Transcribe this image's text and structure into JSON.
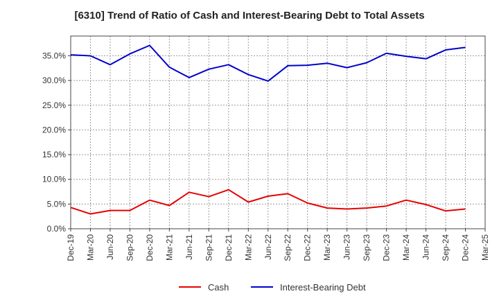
{
  "chart_data": {
    "type": "line",
    "title": "[6310]  Trend of Ratio of Cash and Interest-Bearing Debt to Total Assets",
    "xlabel": "",
    "ylabel": "",
    "categories": [
      "Dec-19",
      "Mar-20",
      "Jun-20",
      "Sep-20",
      "Dec-20",
      "Mar-21",
      "Jun-21",
      "Sep-21",
      "Dec-21",
      "Mar-22",
      "Jun-22",
      "Sep-22",
      "Dec-22",
      "Mar-23",
      "Jun-23",
      "Sep-23",
      "Dec-23",
      "Mar-24",
      "Jun-24",
      "Sep-24",
      "Dec-24",
      "Mar-25"
    ],
    "ylim": [
      0,
      39
    ],
    "yticks": [
      0,
      5,
      10,
      15,
      20,
      25,
      30,
      35
    ],
    "ytick_labels": [
      "0.0%",
      "5.0%",
      "10.0%",
      "15.0%",
      "20.0%",
      "25.0%",
      "30.0%",
      "35.0%"
    ],
    "grid": true,
    "legend_position": "bottom",
    "series": [
      {
        "name": "Cash",
        "color": "#e60000",
        "values": [
          4.3,
          3.0,
          3.7,
          3.7,
          5.8,
          4.7,
          7.4,
          6.5,
          7.9,
          5.4,
          6.6,
          7.1,
          5.2,
          4.2,
          4.0,
          4.2,
          4.6,
          5.8,
          4.9,
          3.6,
          4.0,
          null
        ]
      },
      {
        "name": "Interest-Bearing Debt",
        "color": "#0000cc",
        "values": [
          35.2,
          35.0,
          33.2,
          35.4,
          37.1,
          32.7,
          30.6,
          32.3,
          33.2,
          31.2,
          29.9,
          33.0,
          33.1,
          33.5,
          32.6,
          33.6,
          35.5,
          34.9,
          34.4,
          36.2,
          36.7,
          null
        ]
      }
    ]
  }
}
